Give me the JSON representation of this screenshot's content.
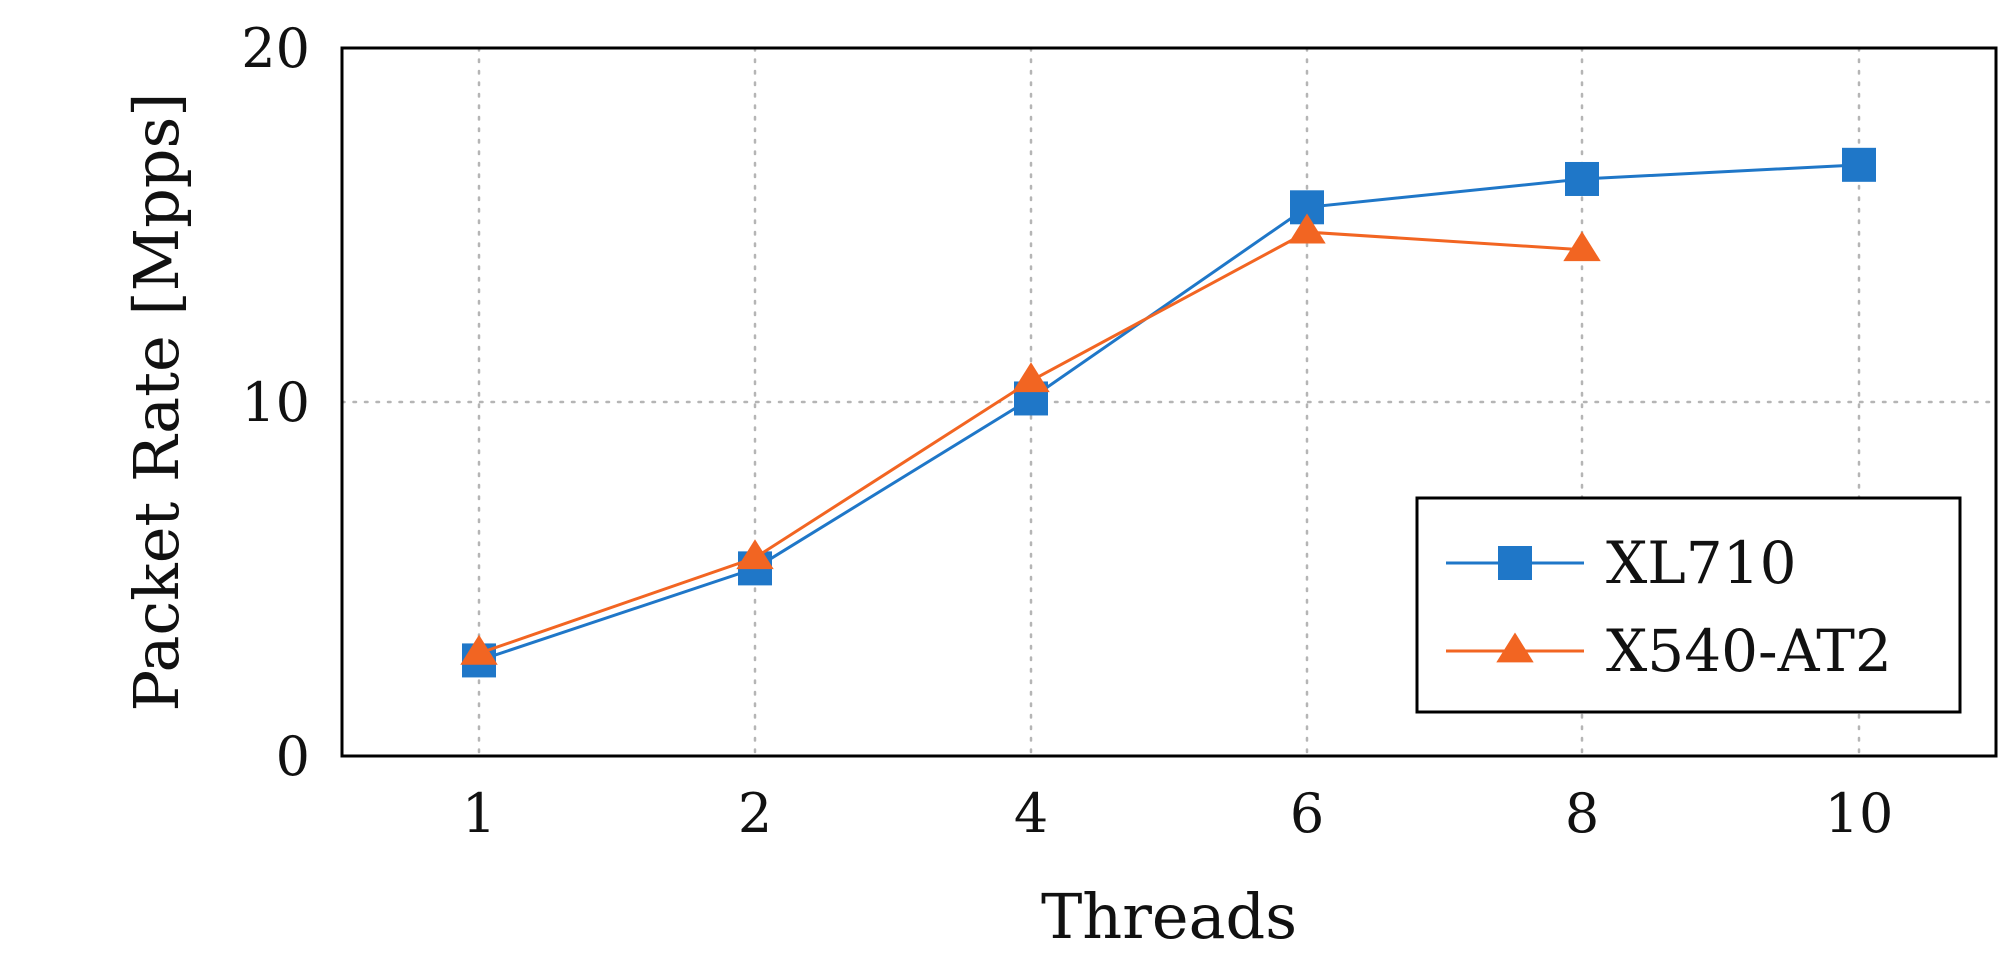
{
  "chart_data": {
    "type": "line",
    "x": [
      1,
      2,
      4,
      6,
      8,
      10
    ],
    "x_tick_labels": [
      "1",
      "2",
      "4",
      "6",
      "8",
      "10"
    ],
    "xlabel": "Threads",
    "ylabel": "Packet Rate [Mpps]",
    "ylim": [
      0,
      20
    ],
    "y_ticks": [
      0,
      10,
      20
    ],
    "grid": true,
    "legend_position": "bottom-right",
    "series": [
      {
        "name": "XL710",
        "color": "#1f77c8",
        "marker": "square",
        "values": [
          2.7,
          5.3,
          10.1,
          15.5,
          16.3,
          16.7
        ]
      },
      {
        "name": "X540-AT2",
        "color": "#f26522",
        "marker": "triangle",
        "values": [
          2.9,
          5.6,
          10.6,
          14.8,
          14.3,
          null
        ]
      }
    ]
  }
}
